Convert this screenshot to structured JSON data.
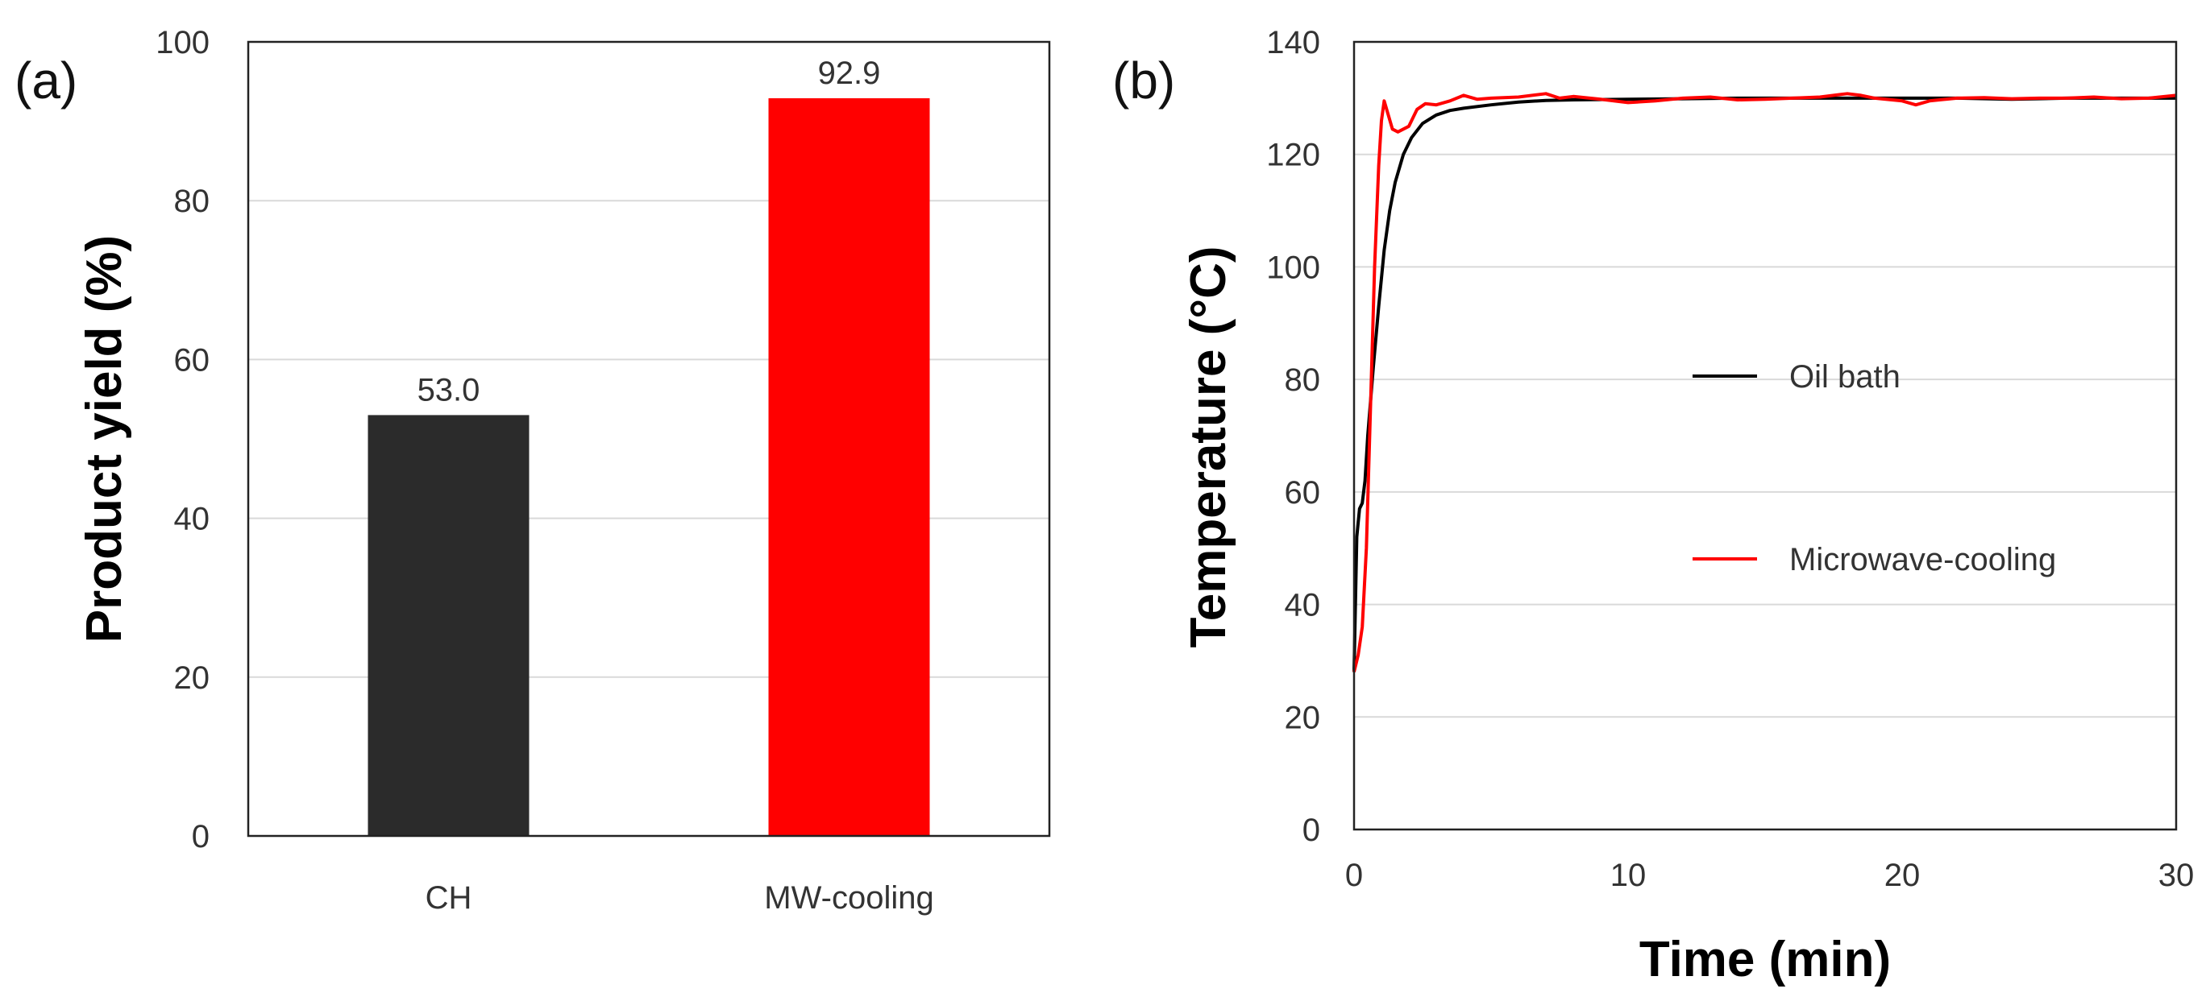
{
  "chart_data": [
    {
      "panel_label": "(a)",
      "type": "bar",
      "title": "",
      "xlabel": "",
      "ylabel": "Product yield (%)",
      "ylim": [
        0,
        100
      ],
      "yticks": [
        "0",
        "20",
        "40",
        "60",
        "80",
        "100"
      ],
      "categories": [
        "CH",
        "MW-cooling"
      ],
      "values": [
        53.0,
        92.9
      ],
      "value_labels": [
        "53.0",
        "92.9"
      ],
      "colors": [
        "#2b2b2b",
        "#ff0000"
      ],
      "grid": true
    },
    {
      "panel_label": "(b)",
      "type": "line",
      "title": "",
      "xlabel": "Time (min)",
      "ylabel": "Temperature (°C)",
      "xlim": [
        0,
        30
      ],
      "ylim": [
        0,
        140
      ],
      "xticks": [
        "0",
        "10",
        "20",
        "30"
      ],
      "yticks": [
        "0",
        "20",
        "40",
        "60",
        "80",
        "100",
        "120",
        "140"
      ],
      "grid": true,
      "legend_position": "center-right",
      "series": [
        {
          "name": "Oil bath",
          "color": "#000000",
          "x": [
            0,
            0.1,
            0.2,
            0.3,
            0.4,
            0.5,
            0.7,
            0.9,
            1.1,
            1.3,
            1.5,
            1.8,
            2.1,
            2.5,
            3,
            3.5,
            4,
            5,
            6,
            7,
            8,
            10,
            12,
            14,
            16,
            18,
            20,
            22,
            24,
            26,
            28,
            30
          ],
          "y": [
            28,
            52,
            57,
            58,
            62,
            70,
            82,
            93,
            103,
            110,
            115,
            120,
            123,
            125.5,
            127,
            127.8,
            128.2,
            128.8,
            129.3,
            129.6,
            129.7,
            129.8,
            129.9,
            130,
            130,
            130,
            130,
            130,
            129.8,
            130,
            130,
            130
          ]
        },
        {
          "name": "Microwave-cooling",
          "color": "#ff0000",
          "x": [
            0,
            0.15,
            0.3,
            0.45,
            0.6,
            0.75,
            0.9,
            1.0,
            1.1,
            1.25,
            1.4,
            1.6,
            1.8,
            2.0,
            2.3,
            2.6,
            3,
            3.5,
            4,
            4.5,
            5,
            6,
            7,
            7.5,
            8,
            9,
            10,
            11,
            12,
            13,
            14,
            15,
            16,
            17,
            18,
            18.5,
            19,
            20,
            20.5,
            21,
            22,
            23,
            24,
            25,
            26,
            27,
            28,
            29,
            30
          ],
          "y": [
            28,
            31,
            36,
            50,
            75,
            100,
            118,
            126,
            129.5,
            127,
            124.5,
            124,
            124.5,
            125,
            128,
            129,
            128.8,
            129.5,
            130.5,
            129.8,
            130,
            130.2,
            130.8,
            130,
            130.3,
            129.8,
            129.2,
            129.5,
            130,
            130.2,
            129.7,
            129.8,
            130,
            130.2,
            130.8,
            130.5,
            130,
            129.5,
            128.8,
            129.5,
            130,
            130.1,
            129.9,
            130,
            130,
            130.2,
            129.9,
            130,
            130.5
          ]
        }
      ]
    }
  ]
}
